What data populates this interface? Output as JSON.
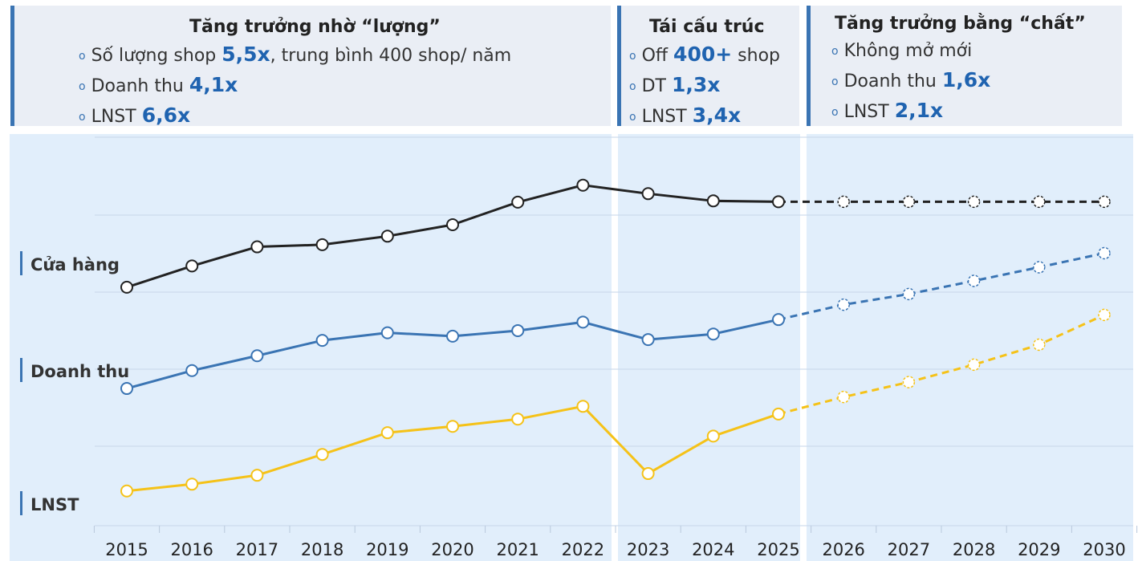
{
  "phases": [
    {
      "title": "Tăng trưởng nhờ “lượng”",
      "bullets": [
        {
          "pre": "Số lượng shop ",
          "hl": "5,5x",
          "post": ", trung bình 400 shop/ năm"
        },
        {
          "pre": "Doanh thu ",
          "hl": "4,1x",
          "post": ""
        },
        {
          "pre": "LNST ",
          "hl": "6,6x",
          "post": ""
        }
      ]
    },
    {
      "title": "Tái cấu trúc",
      "bullets": [
        {
          "pre": "Off ",
          "hl": "400+",
          "post": " shop"
        },
        {
          "pre": "DT ",
          "hl": "1,3x",
          "post": ""
        },
        {
          "pre": "LNST ",
          "hl": "3,4x",
          "post": ""
        }
      ]
    },
    {
      "title": "Tăng trưởng bằng “chất”",
      "bullets": [
        {
          "pre": "Không mở mới",
          "hl": "",
          "post": ""
        },
        {
          "pre": "Doanh thu ",
          "hl": "1,6x",
          "post": ""
        },
        {
          "pre": "LNST ",
          "hl": "2,1x",
          "post": ""
        }
      ]
    }
  ],
  "chart_data": {
    "type": "line",
    "title": "",
    "xlabel": "",
    "ylabel": "",
    "x": [
      "2015",
      "2016",
      "2017",
      "2018",
      "2019",
      "2020",
      "2021",
      "2022",
      "2023",
      "2024",
      "2025",
      "2026",
      "2027",
      "2028",
      "2029",
      "2030"
    ],
    "y_axis": "no scale printed; values are relative index levels read from the plot",
    "grid": true,
    "legend_placement": "left side, labels next to lines",
    "series": [
      {
        "name": "Cửa hàng",
        "color": "#222222",
        "forecast_from": "2025",
        "values": [
          57,
          62,
          66.5,
          67,
          69,
          71.7,
          77,
          81,
          79,
          77.3,
          77.1,
          77.1,
          77.1,
          77.1,
          77.1,
          77.1
        ]
      },
      {
        "name": "Doanh thu",
        "color": "#3a74b3",
        "forecast_from": "2025",
        "values": [
          33.2,
          37.4,
          40.9,
          44.5,
          46.3,
          45.5,
          46.8,
          48.8,
          44.7,
          46,
          49.4,
          52.9,
          55.4,
          58.5,
          61.7,
          65
        ]
      },
      {
        "name": "LNST",
        "color": "#f5c218",
        "forecast_from": "2025",
        "values": [
          9.1,
          10.7,
          12.8,
          17.7,
          22.8,
          24.3,
          26,
          29,
          13.2,
          22,
          27.2,
          31.2,
          34.7,
          38.8,
          43.5,
          50.5
        ]
      }
    ]
  }
}
